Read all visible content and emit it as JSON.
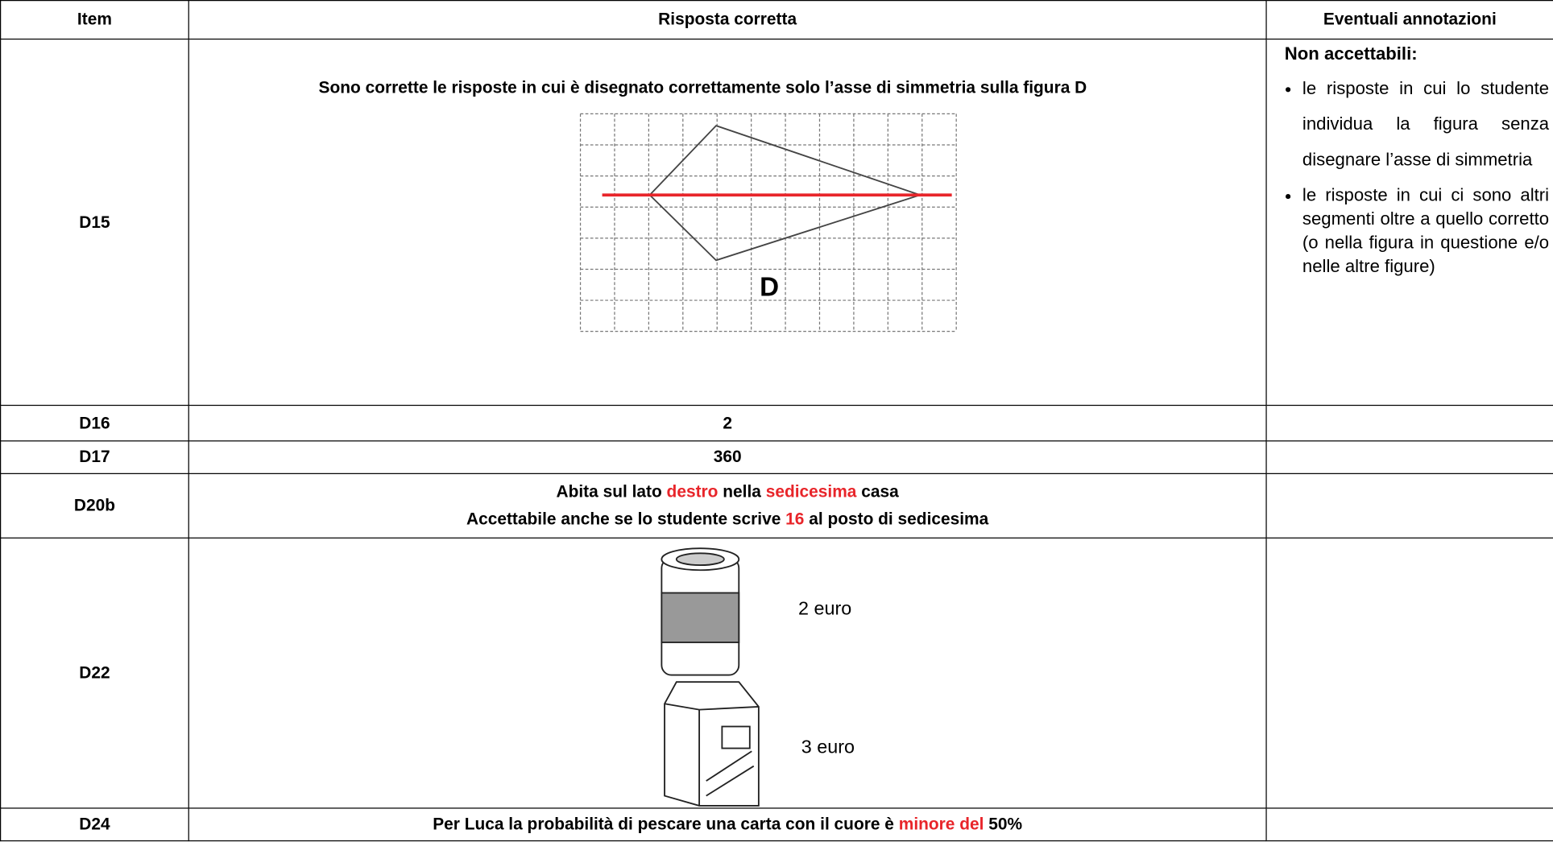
{
  "table": {
    "header": [
      "Item",
      "Risposta corretta",
      "Eventuali annotazioni"
    ],
    "d15": {
      "item": "D15",
      "answer": "Sono corrette le risposte in cui è disegnato correttamente solo l’asse di simmetria sulla figura D",
      "figure_label": "D",
      "notes_title": "Non accettabili:",
      "notes": [
        "le risposte in cui lo studente individua la figura senza disegnare l’asse di simmetria",
        "le risposte in cui ci sono altri segmenti oltre a quello corretto (o nella figura in questione e/o nelle altre figure)"
      ]
    },
    "d16": {
      "item": "D16",
      "answer": "2"
    },
    "d17": {
      "item": "D17",
      "answer": "360"
    },
    "d20b": {
      "item": "D20b",
      "lines": [
        [
          {
            "text": "Abita sul lato "
          },
          {
            "text": "destro",
            "color": "#e8252a"
          },
          {
            "text": " nella "
          },
          {
            "text": "sedicesima",
            "color": "#e8252a"
          },
          {
            "text": " casa"
          }
        ],
        [
          {
            "text": "Accettabile anche se lo studente scrive "
          },
          {
            "text": "16",
            "color": "#e8252a"
          },
          {
            "text": " al posto di sedicesima"
          }
        ]
      ]
    },
    "d22": {
      "item": "D22",
      "price_can": "2 euro",
      "price_carton": "3 euro"
    },
    "d24": {
      "item": "D24",
      "segments": [
        {
          "text": "Per Luca la probabilità di pescare una carta con il cuore è "
        },
        {
          "text": "minore del",
          "color": "#e8252a"
        },
        {
          "text": " 50%"
        }
      ]
    }
  }
}
